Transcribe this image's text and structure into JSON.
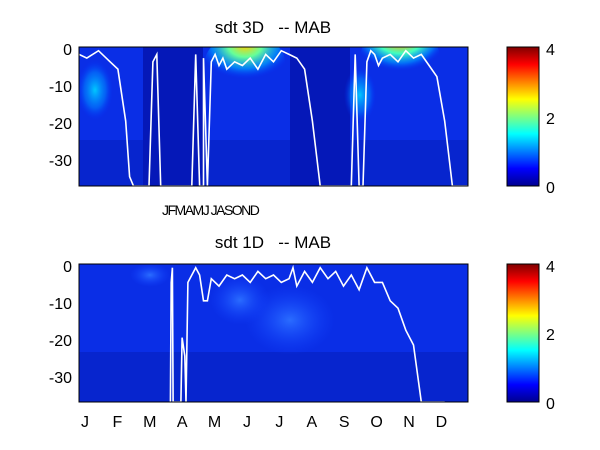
{
  "chart_data": [
    {
      "type": "heatmap",
      "title": "sdt 3D   -- MAB",
      "yticks": [
        "0",
        "-10",
        "-20",
        "-30"
      ],
      "ytick_values": [
        0,
        -10,
        -20,
        -30
      ],
      "ylim": [
        -37.5,
        0
      ],
      "xtick_label_text": "JFMAMJ JASOND",
      "colorbar": {
        "ticks": [
          "0",
          "2",
          "4"
        ],
        "tick_values": [
          0,
          2,
          4
        ],
        "range": [
          0,
          4
        ],
        "colormap": "jet"
      },
      "mixed_layer_line": {
        "color": "#ffffff",
        "x_fraction": [
          0.0,
          0.02,
          0.05,
          0.08,
          0.1,
          0.12,
          0.13,
          0.14,
          0.15,
          0.16,
          0.17,
          0.18,
          0.19,
          0.2,
          0.21,
          0.22,
          0.23,
          0.24,
          0.25,
          0.26,
          0.28,
          0.29,
          0.3,
          0.31,
          0.32,
          0.32,
          0.33,
          0.33,
          0.34,
          0.35,
          0.36,
          0.37,
          0.38,
          0.4,
          0.42,
          0.44,
          0.46,
          0.48,
          0.5,
          0.52,
          0.54,
          0.56,
          0.58,
          0.6,
          0.62,
          0.64,
          0.66,
          0.68,
          0.7,
          0.71,
          0.72,
          0.73,
          0.74,
          0.75,
          0.76,
          0.77,
          0.78,
          0.8,
          0.82,
          0.84,
          0.86,
          0.88,
          0.9,
          0.92,
          0.94,
          0.96,
          0.98,
          1.0
        ],
        "depth": [
          -2,
          -3,
          -1,
          -4,
          -6,
          -20,
          -35,
          -37.5,
          -37.5,
          -37.5,
          -37.5,
          -37.5,
          -4,
          -2,
          -37.5,
          -37.5,
          -37.5,
          -37.5,
          -37.5,
          -37.5,
          -37.5,
          -37.5,
          -2,
          -37.5,
          -37.5,
          -3,
          -37.5,
          -37.5,
          -4,
          -2,
          -5,
          -3,
          -6,
          -4,
          -5,
          -3,
          -6,
          -2,
          -4,
          -1,
          -2,
          -3,
          -6,
          -20,
          -37.5,
          -37.5,
          -37.5,
          -37.5,
          -37.5,
          -2,
          -37.5,
          -37.5,
          -4,
          -1,
          -2,
          -5,
          -3,
          -2,
          -4,
          -1,
          -3,
          -2,
          -5,
          -8,
          -20,
          -37.5,
          -37.5,
          -37.5
        ]
      }
    },
    {
      "type": "heatmap",
      "title": "sdt 1D   -- MAB",
      "yticks": [
        "0",
        "-10",
        "-20",
        "-30"
      ],
      "ytick_values": [
        0,
        -10,
        -20,
        -30
      ],
      "ylim": [
        -37.5,
        0
      ],
      "categories": [
        "J",
        "F",
        "M",
        "A",
        "M",
        "J",
        "J",
        "A",
        "S",
        "O",
        "N",
        "D"
      ],
      "colorbar": {
        "ticks": [
          "0",
          "2",
          "4"
        ],
        "tick_values": [
          0,
          2,
          4
        ],
        "range": [
          0,
          4
        ],
        "colormap": "jet"
      },
      "mixed_layer_line": {
        "color": "#ffffff",
        "x_fraction": [
          0.235,
          0.237,
          0.24,
          0.242,
          0.262,
          0.265,
          0.272,
          0.275,
          0.28,
          0.3,
          0.31,
          0.32,
          0.33,
          0.34,
          0.36,
          0.38,
          0.4,
          0.42,
          0.44,
          0.46,
          0.48,
          0.5,
          0.52,
          0.54,
          0.55,
          0.56,
          0.58,
          0.6,
          0.62,
          0.64,
          0.66,
          0.68,
          0.7,
          0.72,
          0.74,
          0.76,
          0.78,
          0.8,
          0.82,
          0.84,
          0.86,
          0.88,
          0.9,
          0.92,
          0.94
        ],
        "depth": [
          -37.5,
          -5,
          -1,
          -37.5,
          -37.5,
          -20,
          -25,
          -37.5,
          -5,
          -1,
          -3,
          -10,
          -10,
          -4,
          -6,
          -3,
          -4,
          -3,
          -5,
          -2,
          -4,
          -3,
          -5,
          -4,
          -1,
          -6,
          -2,
          -5,
          -1,
          -4,
          -2,
          -6,
          -3,
          -7,
          -1,
          -5,
          -5,
          -10,
          -12,
          -18,
          -22,
          -37.5,
          -37.5,
          -37.5,
          -37.5
        ]
      }
    }
  ]
}
